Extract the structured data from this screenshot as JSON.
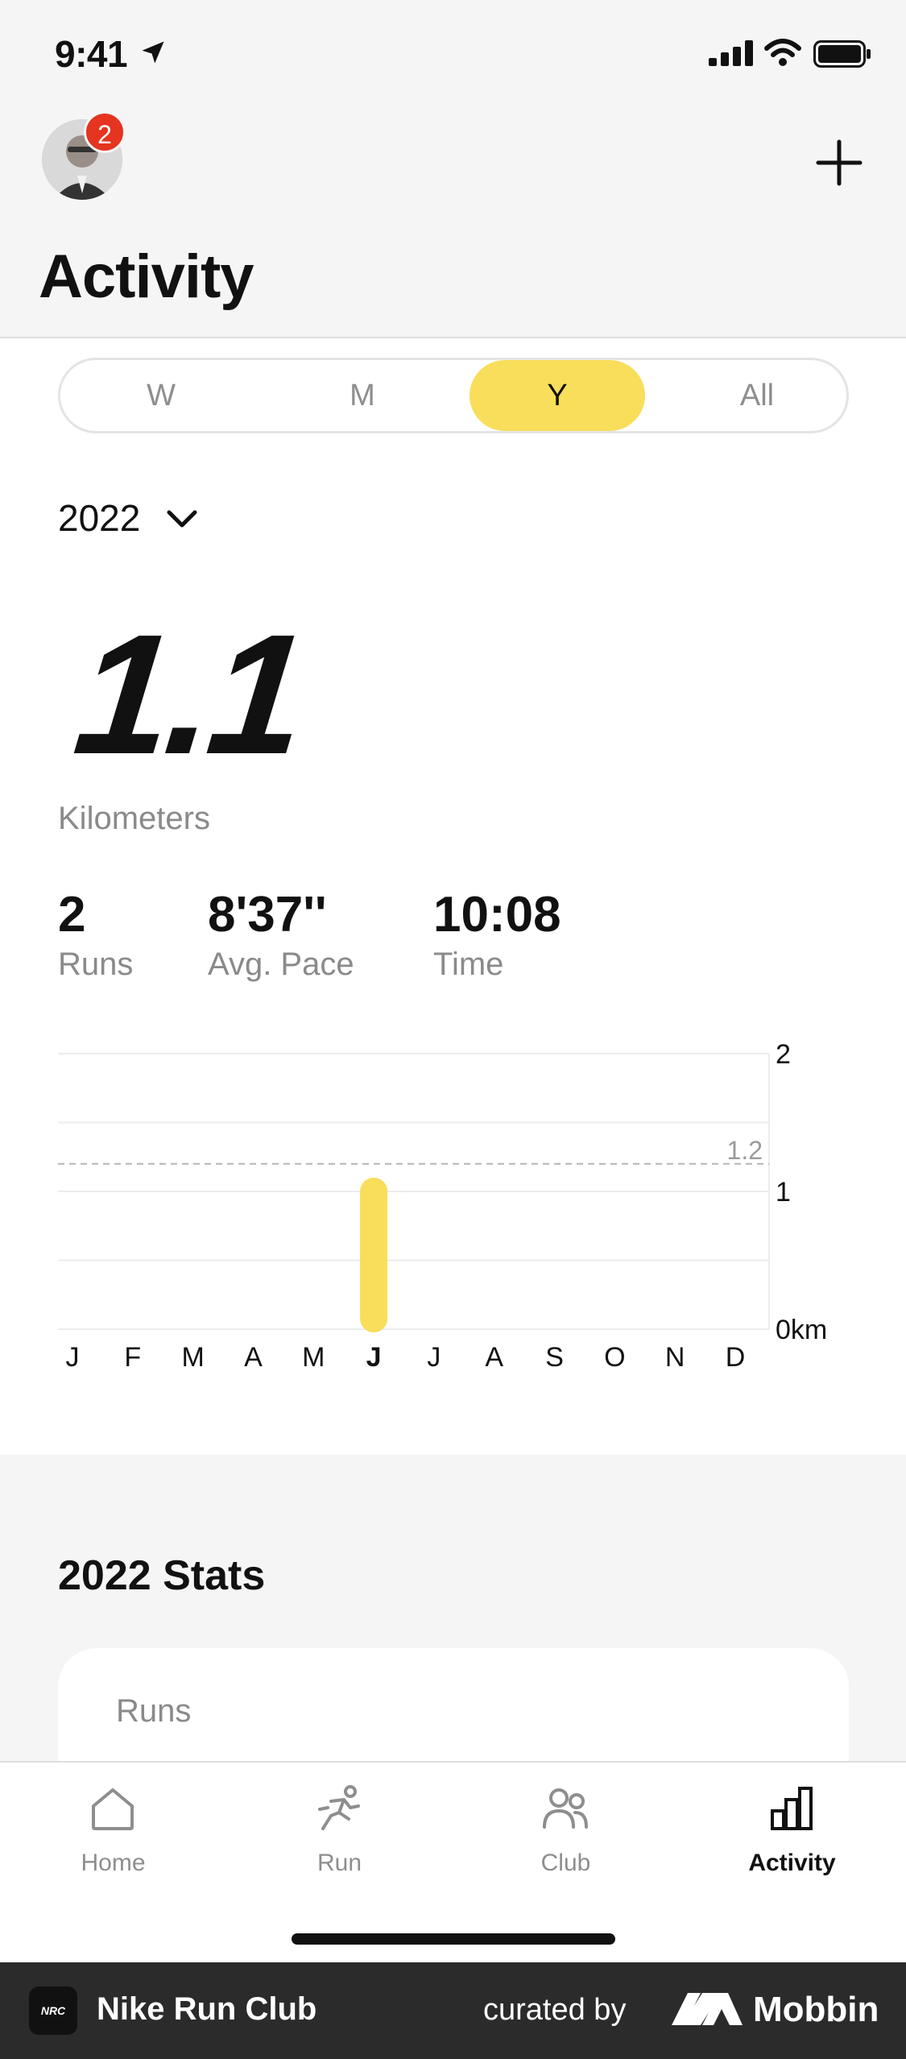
{
  "status_bar": {
    "time": "9:41"
  },
  "header": {
    "title": "Activity",
    "notification_count": "2"
  },
  "range_tabs": [
    {
      "label": "W",
      "active": false
    },
    {
      "label": "M",
      "active": false
    },
    {
      "label": "Y",
      "active": true
    },
    {
      "label": "All",
      "active": false
    }
  ],
  "year": "2022",
  "summary": {
    "distance": "1.1",
    "distance_unit": "Kilometers",
    "runs_value": "2",
    "runs_label": "Runs",
    "pace_value": "8'37''",
    "pace_label": "Avg. Pace",
    "time_value": "10:08",
    "time_label": "Time"
  },
  "chart_data": {
    "type": "bar",
    "categories": [
      "J",
      "F",
      "M",
      "A",
      "M",
      "J",
      "J",
      "A",
      "S",
      "O",
      "N",
      "D"
    ],
    "values": [
      0,
      0,
      0,
      0,
      0,
      1.1,
      0,
      0,
      0,
      0,
      0,
      0
    ],
    "ylim": [
      0,
      2
    ],
    "yticks": [
      "0km",
      "1",
      "2"
    ],
    "reference_line": {
      "value": 1.2,
      "label": "1.2"
    },
    "highlight_category_index": 5,
    "bar_color": "#f8de5a",
    "grid": true
  },
  "stats": {
    "title": "2022 Stats",
    "card_label": "Runs"
  },
  "tabs": [
    {
      "label": "Home",
      "icon": "home-icon",
      "active": false
    },
    {
      "label": "Run",
      "icon": "run-icon",
      "active": false
    },
    {
      "label": "Club",
      "icon": "club-icon",
      "active": false
    },
    {
      "label": "Activity",
      "icon": "activity-icon",
      "active": true
    }
  ],
  "footer": {
    "app_name": "Nike Run Club",
    "curated_by": "curated by",
    "brand": "Mobbin",
    "logo_text": "NRC"
  },
  "colors": {
    "accent": "#f8de5a",
    "badge": "#e5341f"
  }
}
